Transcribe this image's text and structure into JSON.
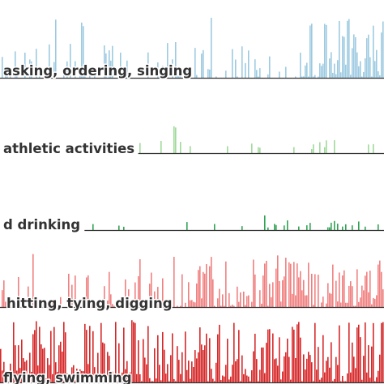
{
  "chart_data": {
    "type": "bar",
    "layout": "stacked small-multiple event histograms sharing a time axis",
    "x_range": [
      0,
      1
    ],
    "grid": false,
    "legend": "none",
    "rows": [
      {
        "label": "asking, ordering, singing",
        "color": "#9ecae1",
        "baseline_color": "#333333",
        "density": 0.97,
        "start": 0.0,
        "ymax": 1.0,
        "segments": [
          {
            "from": 0.0,
            "to": 0.03,
            "density": 0.3
          },
          {
            "from": 0.03,
            "to": 0.38,
            "density": 0.35
          },
          {
            "from": 0.38,
            "to": 0.47,
            "density": 0.8
          },
          {
            "from": 0.47,
            "to": 0.78,
            "density": 0.3
          },
          {
            "from": 0.78,
            "to": 1.0,
            "density": 0.95
          }
        ]
      },
      {
        "label": "athletic activities",
        "color": "#a1d99b",
        "baseline_color": "#333333",
        "start": 0.36,
        "ymax": 1.0,
        "segments": [
          {
            "from": 0.36,
            "to": 1.0,
            "density": 0.12
          }
        ]
      },
      {
        "label": "d drinking",
        "color": "#31a354",
        "baseline_color": "#333333",
        "start": 0.22,
        "ymax": 1.0,
        "segments": [
          {
            "from": 0.22,
            "to": 1.0,
            "density": 0.14
          }
        ]
      },
      {
        "label": "hitting, tying, digging",
        "color": "#f08080",
        "baseline_color": "#333333",
        "start": 0.0,
        "ymax": 1.0,
        "segments": [
          {
            "from": 0.0,
            "to": 0.47,
            "density": 0.45
          },
          {
            "from": 0.47,
            "to": 1.0,
            "density": 0.85
          }
        ]
      },
      {
        "label": "flying, swimming",
        "color": "#d62728",
        "baseline_color": "#333333",
        "start": 0.0,
        "ymax": 1.0,
        "segments": [
          {
            "from": 0.0,
            "to": 1.0,
            "density": 0.98
          }
        ]
      }
    ]
  }
}
